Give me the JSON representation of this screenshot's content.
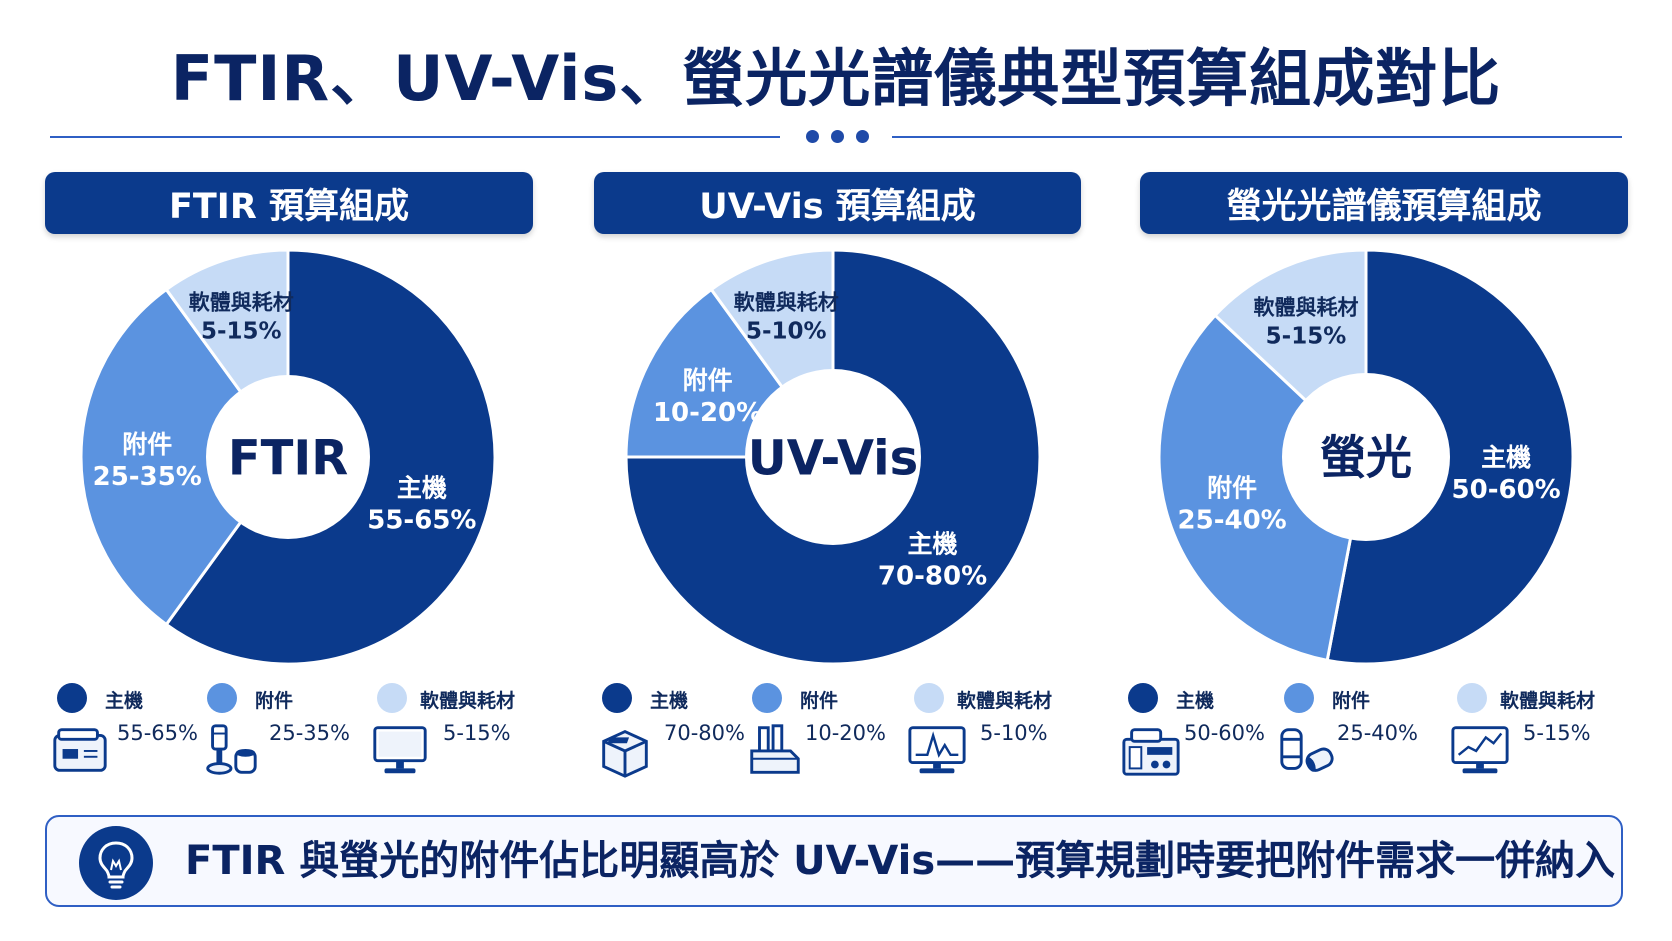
{
  "page": {
    "title": "FTIR、UV-Vis、螢光光譜儀典型預算組成對比",
    "takeaway": "FTIR 與螢光的附件佔比明顯高於 UV-Vis——預算規劃時要把附件需求一併納入"
  },
  "colors": {
    "main": "#0b3a8c",
    "accessory": "#5b93e0",
    "software": "#c6dbf6"
  },
  "chart_data": [
    {
      "type": "pie",
      "title": "FTIR 預算組成",
      "center_label": "FTIR",
      "slices": [
        {
          "name": "主機",
          "range": "55-65%",
          "value": 60,
          "color": "#0b3a8c",
          "icon": "benchtop-instrument-icon"
        },
        {
          "name": "附件",
          "range": "25-35%",
          "value": 30,
          "color": "#5b93e0",
          "icon": "atr-accessory-icon"
        },
        {
          "name": "軟體與耗材",
          "range": "5-15%",
          "value": 10,
          "color": "#c6dbf6",
          "icon": "computer-monitor-icon"
        }
      ]
    },
    {
      "type": "pie",
      "title": "UV-Vis 預算組成",
      "center_label": "UV-Vis",
      "slices": [
        {
          "name": "主機",
          "range": "70-80%",
          "value": 75,
          "color": "#0b3a8c",
          "icon": "cube-instrument-icon"
        },
        {
          "name": "附件",
          "range": "10-20%",
          "value": 15,
          "color": "#5b93e0",
          "icon": "cuvette-holder-icon"
        },
        {
          "name": "軟體與耗材",
          "range": "5-10%",
          "value": 10,
          "color": "#c6dbf6",
          "icon": "spectrum-monitor-icon"
        }
      ]
    },
    {
      "type": "pie",
      "title": "螢光光譜儀預算組成",
      "center_label": "螢光",
      "slices": [
        {
          "name": "主機",
          "range": "50-60%",
          "value": 53,
          "color": "#0b3a8c",
          "icon": "fluorometer-instrument-icon"
        },
        {
          "name": "附件",
          "range": "25-40%",
          "value": 34,
          "color": "#5b93e0",
          "icon": "filter-lens-icon"
        },
        {
          "name": "軟體與耗材",
          "range": "5-15%",
          "value": 13,
          "color": "#c6dbf6",
          "icon": "trend-monitor-icon"
        }
      ]
    }
  ]
}
